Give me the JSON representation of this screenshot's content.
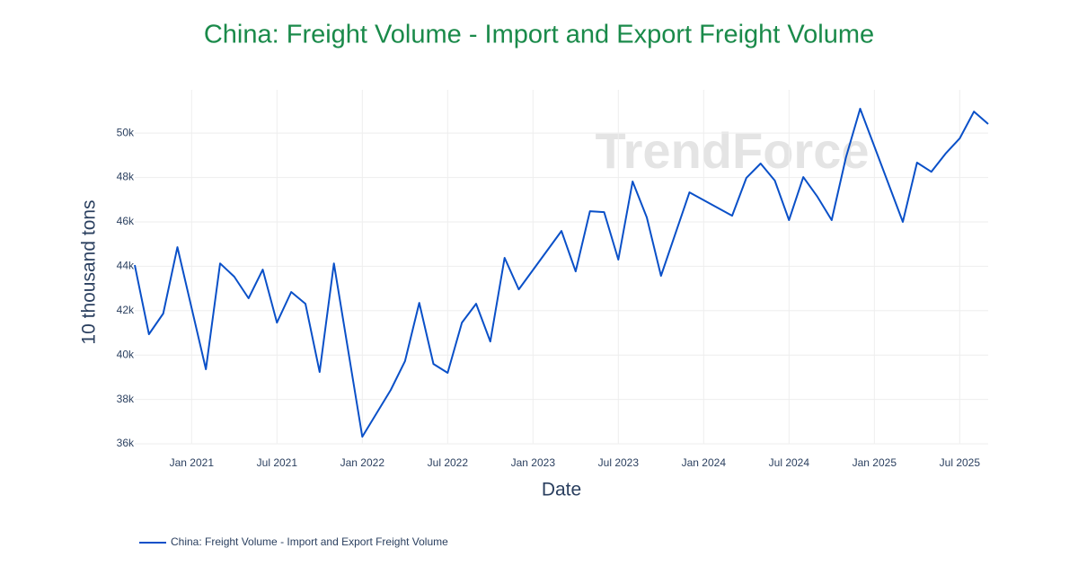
{
  "chart_data": {
    "type": "line",
    "title": "China: Freight Volume - Import and Export Freight Volume",
    "watermark": "TrendForce",
    "x_label": "Date",
    "y_label": "10 thousand tons",
    "x": [
      "2020-09",
      "2020-10",
      "2020-11",
      "2020-12",
      "2021-02",
      "2021-03",
      "2021-04",
      "2021-05",
      "2021-06",
      "2021-07",
      "2021-08",
      "2021-09",
      "2021-10",
      "2021-11",
      "2022-01",
      "2022-03",
      "2022-04",
      "2022-05",
      "2022-06",
      "2022-07",
      "2022-08",
      "2022-09",
      "2022-10",
      "2022-11",
      "2022-12",
      "2023-03",
      "2023-04",
      "2023-05",
      "2023-06",
      "2023-07",
      "2023-08",
      "2023-09",
      "2023-10",
      "2023-12",
      "2024-03",
      "2024-04",
      "2024-05",
      "2024-06",
      "2024-07",
      "2024-08",
      "2024-09",
      "2024-10",
      "2024-11",
      "2024-12",
      "2025-03",
      "2025-04",
      "2025-05",
      "2025-06",
      "2025-07",
      "2025-08",
      "2025-09"
    ],
    "series": [
      {
        "name": "China: Freight Volume - Import and Export Freight Volume",
        "color": "#0a50c8",
        "values": [
          44050,
          40940,
          41870,
          44860,
          39360,
          44130,
          43530,
          42560,
          43850,
          41460,
          42840,
          42310,
          39240,
          44130,
          36320,
          38430,
          39720,
          42350,
          39600,
          39200,
          41460,
          42310,
          40610,
          44380,
          42960,
          45590,
          43770,
          46480,
          46440,
          44300,
          47820,
          46200,
          43570,
          47330,
          46280,
          47980,
          48630,
          47860,
          46080,
          48020,
          47130,
          46080,
          48910,
          51100,
          46000,
          48670,
          48260,
          49070,
          49760,
          50970,
          50410
        ]
      }
    ],
    "xlim": [
      "2020-09",
      "2025-09"
    ],
    "xticks": [
      {
        "value": "2021-01",
        "label": "Jan 2021"
      },
      {
        "value": "2021-07",
        "label": "Jul 2021"
      },
      {
        "value": "2022-01",
        "label": "Jan 2022"
      },
      {
        "value": "2022-07",
        "label": "Jul 2022"
      },
      {
        "value": "2023-01",
        "label": "Jan 2023"
      },
      {
        "value": "2023-07",
        "label": "Jul 2023"
      },
      {
        "value": "2024-01",
        "label": "Jan 2024"
      },
      {
        "value": "2024-07",
        "label": "Jul 2024"
      },
      {
        "value": "2025-01",
        "label": "Jan 2025"
      },
      {
        "value": "2025-07",
        "label": "Jul 2025"
      }
    ],
    "ylim": [
      36000,
      51950
    ],
    "yticks": [
      {
        "value": 36000,
        "label": "36k"
      },
      {
        "value": 38000,
        "label": "38k"
      },
      {
        "value": 40000,
        "label": "40k"
      },
      {
        "value": 42000,
        "label": "42k"
      },
      {
        "value": 44000,
        "label": "44k"
      },
      {
        "value": 46000,
        "label": "46k"
      },
      {
        "value": 48000,
        "label": "48k"
      },
      {
        "value": 50000,
        "label": "50k"
      }
    ],
    "grid": true
  }
}
